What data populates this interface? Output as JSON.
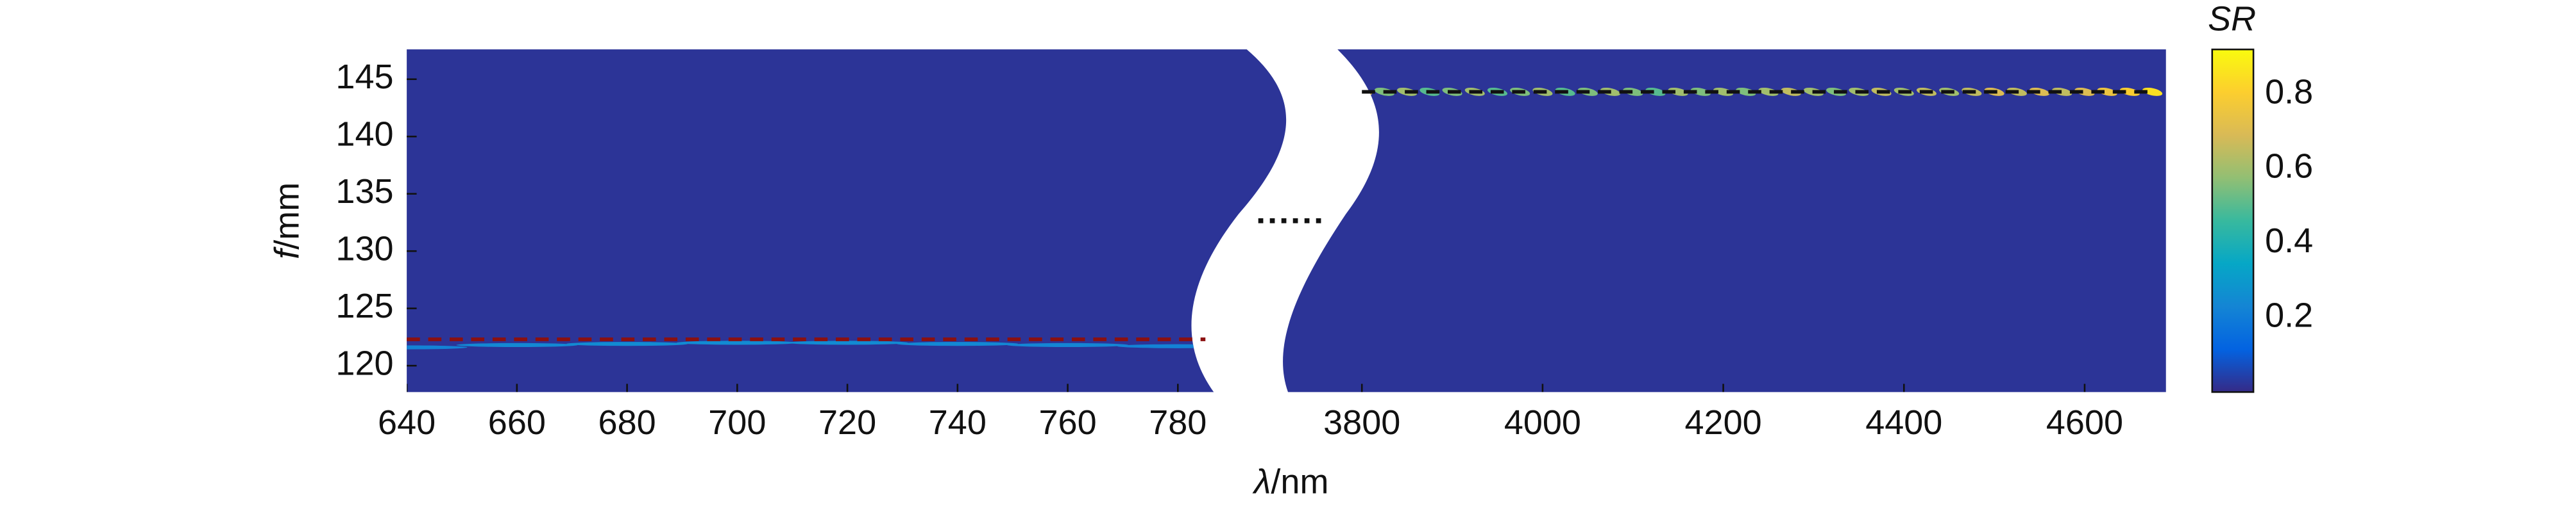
{
  "chart_data": {
    "type": "heatmap",
    "xlabel": {
      "symbol": "λ",
      "unit": "/nm"
    },
    "ylabel": {
      "symbol": "f",
      "unit": "/mm"
    },
    "ylim": [
      117.7,
      147.6
    ],
    "yticks": [
      120,
      125,
      130,
      135,
      140,
      145
    ],
    "colorbar": {
      "label": "SR",
      "clim": [
        0,
        0.92
      ],
      "ticks": [
        0.2,
        0.4,
        0.6,
        0.8
      ],
      "colormap": [
        "#352a87",
        "#0363e1",
        "#1485d4",
        "#06a7c6",
        "#38b99e",
        "#92bf73",
        "#d9ba56",
        "#fcce2e",
        "#f9fb0e"
      ]
    },
    "panels": [
      {
        "xlim": [
          640,
          797
        ],
        "xticks": [
          640,
          660,
          680,
          700,
          720,
          740,
          760,
          780
        ],
        "ridge": {
          "x": [
            640,
            660,
            680,
            700,
            720,
            740,
            760,
            780
          ],
          "y": [
            121.6,
            121.8,
            121.9,
            122.0,
            122.0,
            121.9,
            121.8,
            121.7
          ],
          "sr": [
            0.22,
            0.24,
            0.25,
            0.25,
            0.25,
            0.24,
            0.23,
            0.22
          ]
        },
        "reference": {
          "x": [
            640,
            785
          ],
          "y": 122.3,
          "color": "#8b1010"
        }
      },
      {
        "xlim": [
          3773,
          4690
        ],
        "xticks": [
          3800,
          4000,
          4200,
          4400,
          4600
        ],
        "ridge": {
          "x": [
            3800,
            3825,
            3850,
            3875,
            3900,
            3925,
            3950,
            3975,
            4000,
            4025,
            4050,
            4075,
            4100,
            4125,
            4150,
            4175,
            4200,
            4225,
            4250,
            4275,
            4300,
            4325,
            4350,
            4375,
            4400,
            4425,
            4450,
            4475,
            4500,
            4525,
            4550,
            4575,
            4600,
            4625,
            4650,
            4675
          ],
          "y": [
            143.9,
            143.9,
            143.9,
            143.9,
            143.9,
            143.9,
            143.9,
            143.9,
            143.9,
            143.9,
            143.9,
            143.9,
            143.9,
            143.9,
            143.9,
            143.9,
            143.9,
            143.9,
            143.9,
            143.9,
            143.9,
            143.9,
            143.9,
            143.9,
            143.9,
            143.9,
            143.9,
            143.9,
            143.9,
            143.9,
            143.9,
            143.9,
            143.9,
            143.9,
            143.9,
            143.9
          ],
          "sr": [
            0.7,
            0.55,
            0.6,
            0.5,
            0.55,
            0.6,
            0.5,
            0.55,
            0.6,
            0.5,
            0.55,
            0.6,
            0.55,
            0.5,
            0.6,
            0.55,
            0.6,
            0.55,
            0.6,
            0.65,
            0.6,
            0.55,
            0.6,
            0.65,
            0.6,
            0.65,
            0.6,
            0.65,
            0.7,
            0.65,
            0.7,
            0.65,
            0.7,
            0.75,
            0.8,
            0.85
          ]
        },
        "reference": {
          "x": [
            3800,
            4670
          ],
          "y": 143.9,
          "color": "#111111"
        }
      }
    ]
  }
}
